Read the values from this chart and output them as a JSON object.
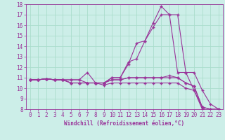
{
  "xlabel": "Windchill (Refroidissement éolien,°C)",
  "background_color": "#cceee8",
  "grid_color": "#aaddcc",
  "line_color": "#993399",
  "x": [
    0,
    1,
    2,
    3,
    4,
    5,
    6,
    7,
    8,
    9,
    10,
    11,
    12,
    13,
    14,
    15,
    16,
    17,
    18,
    19,
    20,
    21,
    22,
    23
  ],
  "series": [
    [
      10.8,
      10.8,
      10.9,
      10.8,
      10.8,
      10.8,
      10.8,
      11.5,
      10.5,
      10.5,
      11.0,
      11.0,
      12.5,
      12.8,
      14.5,
      16.2,
      17.8,
      17.0,
      17.0,
      11.5,
      11.5,
      9.8,
      8.5,
      8.0
    ],
    [
      10.8,
      10.8,
      10.9,
      10.8,
      10.8,
      10.8,
      10.8,
      10.5,
      10.5,
      10.5,
      11.0,
      11.0,
      12.3,
      14.3,
      14.5,
      15.8,
      17.0,
      17.0,
      11.5,
      11.5,
      9.8,
      8.2,
      7.5,
      8.0
    ],
    [
      10.8,
      10.8,
      10.9,
      10.8,
      10.8,
      10.5,
      10.5,
      10.5,
      10.5,
      10.5,
      10.8,
      10.8,
      11.0,
      11.0,
      11.0,
      11.0,
      11.0,
      11.2,
      11.0,
      10.5,
      10.2,
      8.2,
      8.0,
      8.0
    ],
    [
      10.8,
      10.8,
      10.9,
      10.8,
      10.8,
      10.5,
      10.5,
      10.5,
      10.5,
      10.5,
      10.8,
      10.8,
      11.0,
      11.0,
      11.0,
      11.0,
      11.0,
      11.0,
      11.0,
      10.5,
      10.2,
      8.2,
      8.0,
      8.0
    ],
    [
      10.8,
      10.8,
      10.9,
      10.8,
      10.8,
      10.5,
      10.5,
      10.5,
      10.5,
      10.3,
      10.5,
      10.5,
      10.5,
      10.5,
      10.5,
      10.5,
      10.5,
      10.5,
      10.5,
      10.0,
      9.8,
      8.0,
      7.5,
      7.8
    ]
  ],
  "ylim": [
    8,
    18
  ],
  "yticks": [
    8,
    9,
    10,
    11,
    12,
    13,
    14,
    15,
    16,
    17,
    18
  ],
  "xticks": [
    0,
    1,
    2,
    3,
    4,
    5,
    6,
    7,
    8,
    9,
    10,
    11,
    12,
    13,
    14,
    15,
    16,
    17,
    18,
    19,
    20,
    21,
    22,
    23
  ],
  "marker": "+",
  "markersize": 3,
  "linewidth": 0.8,
  "tick_fontsize": 5.5,
  "xlabel_fontsize": 5.5
}
